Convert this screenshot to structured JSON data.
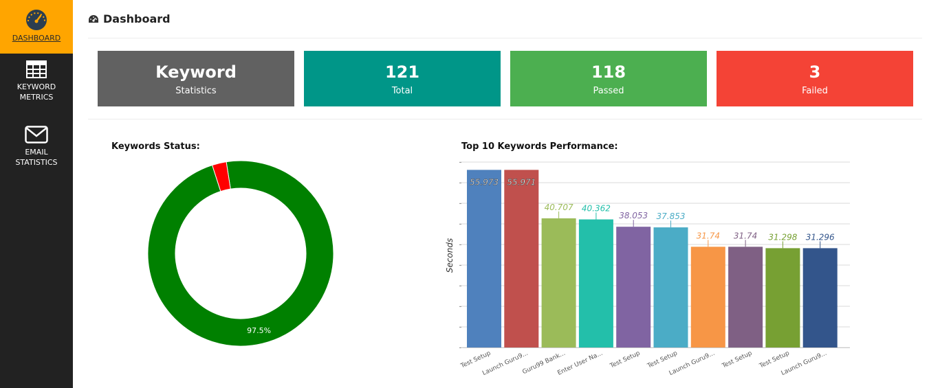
{
  "sidebar": {
    "items": [
      {
        "label": "DASHBOARD",
        "icon": "gauge-icon",
        "active": true
      },
      {
        "label": "KEYWORD METRICS",
        "icon": "table-icon",
        "active": false
      },
      {
        "label": "EMAIL STATISTICS",
        "icon": "envelope-icon",
        "active": false
      }
    ],
    "colors": {
      "background": "#222222",
      "active": "#ffa500"
    }
  },
  "header": {
    "title": "Dashboard",
    "icon": "dashboard-icon"
  },
  "cards": [
    {
      "value": "Keyword",
      "label": "Statistics",
      "color": "#616161"
    },
    {
      "value": "121",
      "label": "Total",
      "color": "#009688"
    },
    {
      "value": "118",
      "label": "Passed",
      "color": "#4caf50"
    },
    {
      "value": "3",
      "label": "Failed",
      "color": "#f44336"
    }
  ],
  "status_section": {
    "title": "Keywords Status:"
  },
  "performance_section": {
    "title": "Top 10 Keywords Performance:"
  },
  "chart_data": [
    {
      "type": "pie",
      "title": "Keywords Status:",
      "slices": [
        {
          "value": 118,
          "color": "#008000",
          "label": "97.5%"
        },
        {
          "value": 3,
          "color": "#ff0000",
          "label": ""
        }
      ]
    },
    {
      "type": "bar",
      "title": "Top 10 Keywords Performance:",
      "ylabel": "Seconds",
      "ylim": [
        0,
        58
      ],
      "grid": true,
      "categories": [
        "Test Setup",
        "Launch Guru9...",
        "Guru99 Bank...",
        "Enter User Na...",
        "Test Setup",
        "Test Setup",
        "Launch Guru9...",
        "Test Setup",
        "Test Setup",
        "Launch Guru9..."
      ],
      "values": [
        55.973,
        55.971,
        40.707,
        40.362,
        38.053,
        37.853,
        31.74,
        31.74,
        31.298,
        31.296
      ],
      "colors": [
        "#4f81bd",
        "#c0504d",
        "#9bbb59",
        "#23bfaa",
        "#8064a2",
        "#4bacc6",
        "#f79646",
        "#7f6084",
        "#77a033",
        "#33558b"
      ]
    }
  ]
}
